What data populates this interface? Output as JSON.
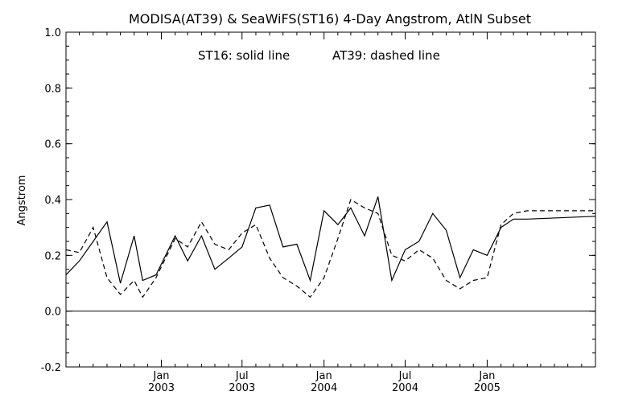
{
  "chart_data": {
    "type": "line",
    "title": "MODISA(AT39) & SeaWiFS(ST16) 4-Day Angstrom, AtlN Subset",
    "annotation_left": "ST16: solid line",
    "annotation_right": "AT39: dashed line",
    "ylabel": "Angstrom",
    "xlabel": "",
    "ylim": [
      -0.2,
      1.0
    ],
    "xlim": [
      "2002-06-01",
      "2005-09-01"
    ],
    "grid": false,
    "yticks": [
      {
        "value": -0.2,
        "label": "-0.2"
      },
      {
        "value": 0.0,
        "label": "0.0"
      },
      {
        "value": 0.2,
        "label": "0.2"
      },
      {
        "value": 0.4,
        "label": "0.4"
      },
      {
        "value": 0.6,
        "label": "0.6"
      },
      {
        "value": 0.8,
        "label": "0.8"
      },
      {
        "value": 1.0,
        "label": "1.0"
      }
    ],
    "xticks": [
      {
        "date": "2003-01-01",
        "label": "Jan",
        "year": "2003"
      },
      {
        "date": "2003-07-01",
        "label": "Jul",
        "year": "2003"
      },
      {
        "date": "2004-01-01",
        "label": "Jan",
        "year": "2004"
      },
      {
        "date": "2004-07-01",
        "label": "Jul",
        "year": "2004"
      },
      {
        "date": "2005-01-01",
        "label": "Jan",
        "year": "2005"
      }
    ],
    "minor_xticks": [
      "2002-07-01",
      "2002-08-01",
      "2002-09-01",
      "2002-10-01",
      "2002-11-01",
      "2002-12-01",
      "2003-02-01",
      "2003-03-01",
      "2003-04-01",
      "2003-05-01",
      "2003-06-01",
      "2003-08-01",
      "2003-09-01",
      "2003-10-01",
      "2003-11-01",
      "2003-12-01",
      "2004-02-01",
      "2004-03-01",
      "2004-04-01",
      "2004-05-01",
      "2004-06-01",
      "2004-08-01",
      "2004-09-01",
      "2004-10-01",
      "2004-11-01",
      "2004-12-01",
      "2005-02-01",
      "2005-03-01",
      "2005-04-01",
      "2005-05-01",
      "2005-06-01",
      "2005-07-01",
      "2005-08-01"
    ],
    "reference_line": 0.0,
    "series": [
      {
        "name": "ST16",
        "style": "solid",
        "color": "#000000",
        "points": [
          [
            "2002-06-01",
            0.13
          ],
          [
            "2002-07-01",
            0.18
          ],
          [
            "2002-08-01",
            0.25
          ],
          [
            "2002-09-01",
            0.32
          ],
          [
            "2002-10-01",
            0.1
          ],
          [
            "2002-11-01",
            0.27
          ],
          [
            "2002-11-20",
            0.11
          ],
          [
            "2002-12-20",
            0.13
          ],
          [
            "2003-02-01",
            0.27
          ],
          [
            "2003-03-01",
            0.18
          ],
          [
            "2003-04-01",
            0.27
          ],
          [
            "2003-05-01",
            0.15
          ],
          [
            "2003-06-01",
            0.19
          ],
          [
            "2003-07-01",
            0.23
          ],
          [
            "2003-08-01",
            0.37
          ],
          [
            "2003-09-01",
            0.38
          ],
          [
            "2003-10-01",
            0.23
          ],
          [
            "2003-11-01",
            0.24
          ],
          [
            "2003-12-01",
            0.11
          ],
          [
            "2004-01-01",
            0.36
          ],
          [
            "2004-02-01",
            0.31
          ],
          [
            "2004-03-01",
            0.37
          ],
          [
            "2004-04-01",
            0.27
          ],
          [
            "2004-05-01",
            0.41
          ],
          [
            "2004-06-01",
            0.11
          ],
          [
            "2004-07-01",
            0.22
          ],
          [
            "2004-08-01",
            0.25
          ],
          [
            "2004-09-01",
            0.35
          ],
          [
            "2004-10-01",
            0.29
          ],
          [
            "2004-11-01",
            0.12
          ],
          [
            "2004-12-01",
            0.22
          ],
          [
            "2005-01-01",
            0.2
          ],
          [
            "2005-02-01",
            0.3
          ],
          [
            "2005-03-01",
            0.33
          ],
          [
            "2005-04-01",
            0.33
          ],
          [
            "2005-09-01",
            0.34
          ]
        ]
      },
      {
        "name": "AT39",
        "style": "dashed",
        "color": "#000000",
        "points": [
          [
            "2002-06-01",
            0.22
          ],
          [
            "2002-07-01",
            0.21
          ],
          [
            "2002-08-01",
            0.3
          ],
          [
            "2002-09-01",
            0.12
          ],
          [
            "2002-10-01",
            0.06
          ],
          [
            "2002-11-01",
            0.11
          ],
          [
            "2002-11-20",
            0.05
          ],
          [
            "2002-12-20",
            0.12
          ],
          [
            "2003-02-01",
            0.26
          ],
          [
            "2003-03-01",
            0.23
          ],
          [
            "2003-04-01",
            0.32
          ],
          [
            "2003-05-01",
            0.24
          ],
          [
            "2003-06-01",
            0.22
          ],
          [
            "2003-07-01",
            0.28
          ],
          [
            "2003-08-01",
            0.31
          ],
          [
            "2003-09-01",
            0.19
          ],
          [
            "2003-10-01",
            0.12
          ],
          [
            "2003-11-01",
            0.09
          ],
          [
            "2003-12-01",
            0.05
          ],
          [
            "2004-01-01",
            0.12
          ],
          [
            "2004-02-01",
            0.26
          ],
          [
            "2004-03-01",
            0.4
          ],
          [
            "2004-04-01",
            0.37
          ],
          [
            "2004-05-01",
            0.35
          ],
          [
            "2004-06-01",
            0.2
          ],
          [
            "2004-07-01",
            0.18
          ],
          [
            "2004-08-01",
            0.22
          ],
          [
            "2004-09-01",
            0.19
          ],
          [
            "2004-10-01",
            0.11
          ],
          [
            "2004-11-01",
            0.08
          ],
          [
            "2004-12-01",
            0.11
          ],
          [
            "2005-01-01",
            0.12
          ],
          [
            "2005-02-01",
            0.31
          ],
          [
            "2005-03-01",
            0.35
          ],
          [
            "2005-04-01",
            0.36
          ],
          [
            "2005-09-01",
            0.36
          ]
        ]
      }
    ]
  }
}
